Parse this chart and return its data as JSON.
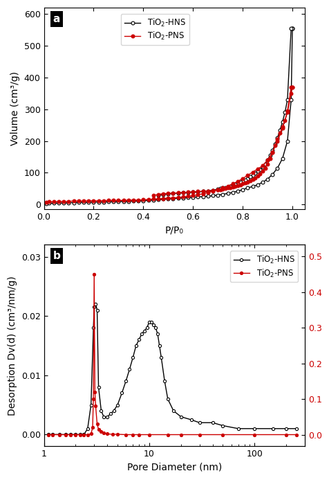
{
  "panel_a": {
    "title_label": "a",
    "xlabel": "P/P₀",
    "ylabel": "Volume (cm³/g)",
    "ylim": [
      -15,
      620
    ],
    "xlim": [
      0.0,
      1.05
    ],
    "yticks": [
      0,
      100,
      200,
      300,
      400,
      500,
      600
    ],
    "xticks": [
      0.0,
      0.2,
      0.4,
      0.6,
      0.8,
      1.0
    ],
    "hns_adsorption_x": [
      0.01,
      0.02,
      0.04,
      0.06,
      0.08,
      0.1,
      0.12,
      0.14,
      0.16,
      0.18,
      0.2,
      0.22,
      0.24,
      0.26,
      0.28,
      0.3,
      0.32,
      0.34,
      0.36,
      0.38,
      0.4,
      0.42,
      0.44,
      0.46,
      0.48,
      0.5,
      0.52,
      0.54,
      0.56,
      0.58,
      0.6,
      0.62,
      0.64,
      0.66,
      0.68,
      0.7,
      0.72,
      0.74,
      0.76,
      0.78,
      0.8,
      0.82,
      0.84,
      0.86,
      0.88,
      0.9,
      0.92,
      0.94,
      0.96,
      0.98,
      0.995,
      1.0
    ],
    "hns_adsorption_y": [
      3,
      4,
      4,
      5,
      5,
      6,
      6,
      7,
      7,
      7,
      8,
      8,
      8,
      9,
      9,
      9,
      10,
      10,
      11,
      11,
      12,
      13,
      14,
      15,
      17,
      18,
      19,
      20,
      21,
      22,
      23,
      24,
      25,
      26,
      28,
      30,
      32,
      35,
      38,
      42,
      47,
      52,
      57,
      62,
      70,
      80,
      95,
      115,
      145,
      200,
      330,
      555
    ],
    "hns_desorption_x": [
      1.0,
      0.995,
      0.98,
      0.97,
      0.96,
      0.95,
      0.94,
      0.93,
      0.92,
      0.91,
      0.9,
      0.89,
      0.88,
      0.87,
      0.86,
      0.85,
      0.84,
      0.83,
      0.82,
      0.81,
      0.8,
      0.79,
      0.78,
      0.77,
      0.76,
      0.75,
      0.74,
      0.73,
      0.72,
      0.71,
      0.7,
      0.68,
      0.66,
      0.64,
      0.62,
      0.6,
      0.58,
      0.56,
      0.54,
      0.52,
      0.5,
      0.48,
      0.46
    ],
    "hns_desorption_y": [
      555,
      555,
      330,
      290,
      260,
      235,
      210,
      190,
      170,
      155,
      140,
      128,
      118,
      110,
      105,
      98,
      92,
      87,
      82,
      78,
      74,
      70,
      67,
      64,
      61,
      58,
      56,
      54,
      52,
      50,
      48,
      45,
      43,
      41,
      40,
      39,
      38,
      37,
      36,
      35,
      34,
      32,
      28
    ],
    "pns_adsorption_x": [
      0.01,
      0.02,
      0.04,
      0.06,
      0.08,
      0.1,
      0.12,
      0.14,
      0.16,
      0.18,
      0.2,
      0.22,
      0.24,
      0.26,
      0.28,
      0.3,
      0.32,
      0.34,
      0.36,
      0.38,
      0.4,
      0.42,
      0.44,
      0.46,
      0.48,
      0.5,
      0.52,
      0.54,
      0.56,
      0.58,
      0.6,
      0.62,
      0.64,
      0.66,
      0.68,
      0.7,
      0.72,
      0.74,
      0.76,
      0.78,
      0.8,
      0.82,
      0.84,
      0.86,
      0.88,
      0.9,
      0.92,
      0.94,
      0.96,
      0.98,
      0.995,
      1.0
    ],
    "pns_adsorption_y": [
      8,
      9,
      9,
      10,
      10,
      10,
      11,
      11,
      11,
      12,
      12,
      12,
      12,
      13,
      13,
      13,
      13,
      14,
      14,
      14,
      15,
      16,
      17,
      18,
      19,
      20,
      21,
      22,
      24,
      26,
      28,
      31,
      34,
      38,
      42,
      47,
      52,
      58,
      65,
      73,
      82,
      92,
      102,
      112,
      122,
      140,
      165,
      200,
      240,
      290,
      350,
      370
    ],
    "pns_desorption_x": [
      1.0,
      0.995,
      0.98,
      0.97,
      0.96,
      0.95,
      0.94,
      0.93,
      0.92,
      0.91,
      0.9,
      0.89,
      0.88,
      0.87,
      0.86,
      0.85,
      0.84,
      0.83,
      0.82,
      0.81,
      0.8,
      0.79,
      0.78,
      0.77,
      0.76,
      0.75,
      0.74,
      0.73,
      0.72,
      0.71,
      0.7,
      0.68,
      0.66,
      0.64,
      0.62,
      0.6,
      0.58,
      0.56,
      0.54,
      0.52,
      0.5,
      0.48,
      0.46,
      0.44
    ],
    "pns_desorption_y": [
      370,
      370,
      295,
      265,
      245,
      225,
      205,
      185,
      165,
      145,
      128,
      115,
      105,
      97,
      90,
      84,
      79,
      75,
      71,
      68,
      65,
      62,
      60,
      58,
      56,
      54,
      52,
      50,
      48,
      47,
      46,
      44,
      43,
      42,
      41,
      40,
      39,
      38,
      37,
      36,
      35,
      34,
      32,
      28
    ],
    "hns_color": "#000000",
    "pns_color": "#cc0000"
  },
  "panel_b": {
    "title_label": "b",
    "xlabel": "Pore Diameter (nm)",
    "ylabel_left": "Desorption Dv(d) (cm³/nm/g)",
    "ylim_left": [
      -0.002,
      0.032
    ],
    "ylim_right": [
      -0.033,
      0.533
    ],
    "xlim": [
      1,
      300
    ],
    "yticks_left": [
      0.0,
      0.01,
      0.02,
      0.03
    ],
    "yticks_right": [
      0.0,
      0.1,
      0.2,
      0.3,
      0.4,
      0.5
    ],
    "hns_x": [
      1.1,
      1.2,
      1.4,
      1.6,
      1.8,
      2.0,
      2.2,
      2.4,
      2.6,
      2.8,
      2.95,
      3.0,
      3.1,
      3.2,
      3.3,
      3.5,
      3.7,
      4.0,
      4.3,
      4.6,
      5.0,
      5.5,
      6.0,
      6.5,
      7.0,
      7.5,
      8.0,
      8.5,
      9.0,
      9.5,
      10.0,
      10.5,
      11.0,
      11.5,
      12.0,
      12.5,
      13.0,
      14.0,
      15.0,
      17.0,
      20.0,
      25.0,
      30.0,
      40.0,
      50.0,
      70.0,
      100.0,
      150.0,
      200.0,
      250.0
    ],
    "hns_y": [
      0.0,
      0.0,
      0.0,
      0.0,
      0.0,
      0.0,
      0.0,
      0.0,
      0.001,
      0.005,
      0.018,
      0.0215,
      0.022,
      0.021,
      0.008,
      0.004,
      0.003,
      0.003,
      0.0035,
      0.004,
      0.005,
      0.007,
      0.009,
      0.011,
      0.013,
      0.015,
      0.016,
      0.017,
      0.0175,
      0.018,
      0.019,
      0.019,
      0.0185,
      0.018,
      0.017,
      0.015,
      0.013,
      0.009,
      0.006,
      0.004,
      0.003,
      0.0025,
      0.002,
      0.002,
      0.0015,
      0.001,
      0.001,
      0.001,
      0.001,
      0.001
    ],
    "pns_right_x": [
      1.1,
      1.2,
      1.4,
      1.6,
      1.8,
      2.0,
      2.2,
      2.4,
      2.6,
      2.8,
      2.9,
      2.95,
      3.0,
      3.05,
      3.1,
      3.2,
      3.3,
      3.5,
      3.7,
      4.0,
      4.5,
      5.0,
      6.0,
      7.0,
      8.0,
      10.0,
      15.0,
      20.0,
      30.0,
      50.0,
      100.0,
      200.0,
      250.0
    ],
    "pns_right_y": [
      0.0,
      0.0,
      0.0,
      0.0,
      0.0,
      0.0,
      0.0,
      0.0,
      0.0,
      0.002,
      0.02,
      0.1,
      0.45,
      0.12,
      0.08,
      0.03,
      0.015,
      0.008,
      0.004,
      0.002,
      0.001,
      0.001,
      0.0,
      0.0,
      0.0,
      0.0,
      0.0,
      0.0,
      0.0,
      0.0,
      0.0,
      0.0,
      0.0
    ],
    "hns_color": "#000000",
    "pns_color": "#cc0000"
  },
  "figure_bg": "#ffffff",
  "font_size_label": 10,
  "font_size_tick": 9,
  "font_size_legend": 8.5,
  "font_size_panel_label": 11
}
